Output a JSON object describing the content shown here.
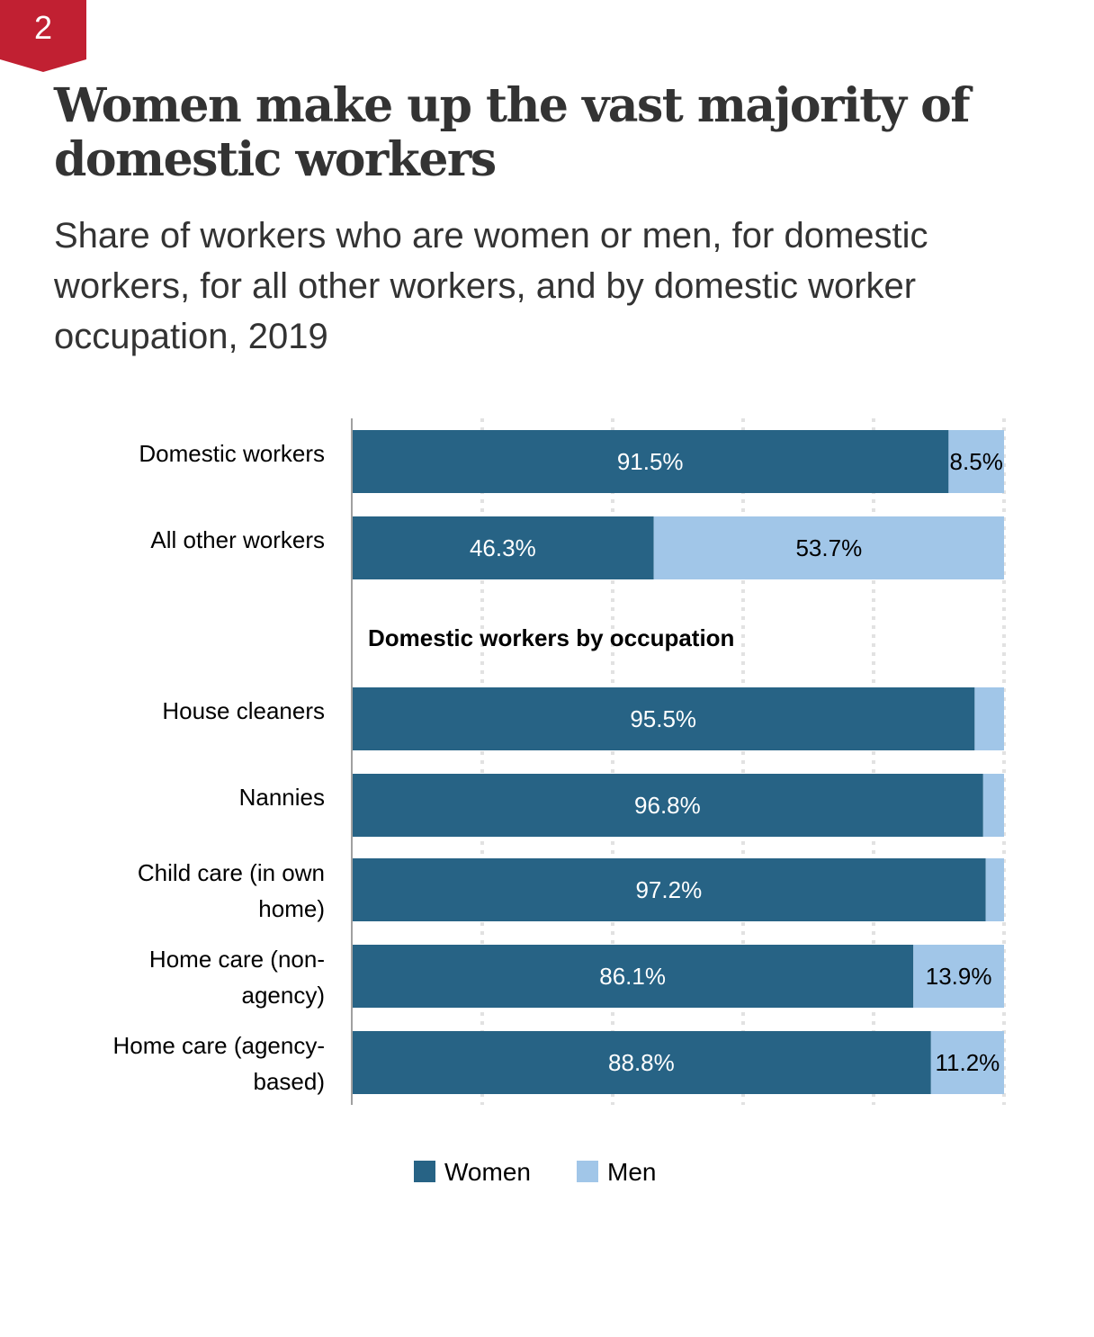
{
  "badge": {
    "number": "2"
  },
  "header": {
    "title": "Women make up the vast majority of domestic workers",
    "subtitle": "Share of workers who are women or men, for domestic workers, for all other workers, and by domestic worker occupation, 2019"
  },
  "colors": {
    "women": "#276385",
    "men": "#a1c6e8",
    "badge": "#c12032",
    "grid": "#e2e2e2"
  },
  "chart_data": {
    "type": "bar",
    "orientation": "horizontal",
    "stacked": true,
    "xlim": [
      0,
      100
    ],
    "grid": true,
    "section_label": "Domestic workers by occupation",
    "categories": [
      {
        "label_lines": [
          "Domestic workers"
        ],
        "women": 91.5,
        "men": 8.5,
        "women_label": "91.5%",
        "men_label": "8.5%"
      },
      {
        "label_lines": [
          "All other workers"
        ],
        "women": 46.3,
        "men": 53.7,
        "women_label": "46.3%",
        "men_label": "53.7%"
      },
      {
        "label_lines": [
          "House cleaners"
        ],
        "women": 95.5,
        "men": 4.5,
        "women_label": "95.5%",
        "men_label": ""
      },
      {
        "label_lines": [
          "Nannies"
        ],
        "women": 96.8,
        "men": 3.2,
        "women_label": "96.8%",
        "men_label": ""
      },
      {
        "label_lines": [
          "Child care (in own",
          "home)"
        ],
        "women": 97.2,
        "men": 2.8,
        "women_label": "97.2%",
        "men_label": ""
      },
      {
        "label_lines": [
          "Home care (non-",
          "agency)"
        ],
        "women": 86.1,
        "men": 13.9,
        "women_label": "86.1%",
        "men_label": "13.9%"
      },
      {
        "label_lines": [
          "Home care (agency-",
          "based)"
        ],
        "women": 88.8,
        "men": 11.2,
        "women_label": "88.8%",
        "men_label": "11.2%"
      }
    ],
    "series": [
      {
        "name": "Women",
        "color": "#276385"
      },
      {
        "name": "Men",
        "color": "#a1c6e8"
      }
    ],
    "legend": {
      "position": "bottom",
      "items": [
        "Women",
        "Men"
      ]
    }
  }
}
